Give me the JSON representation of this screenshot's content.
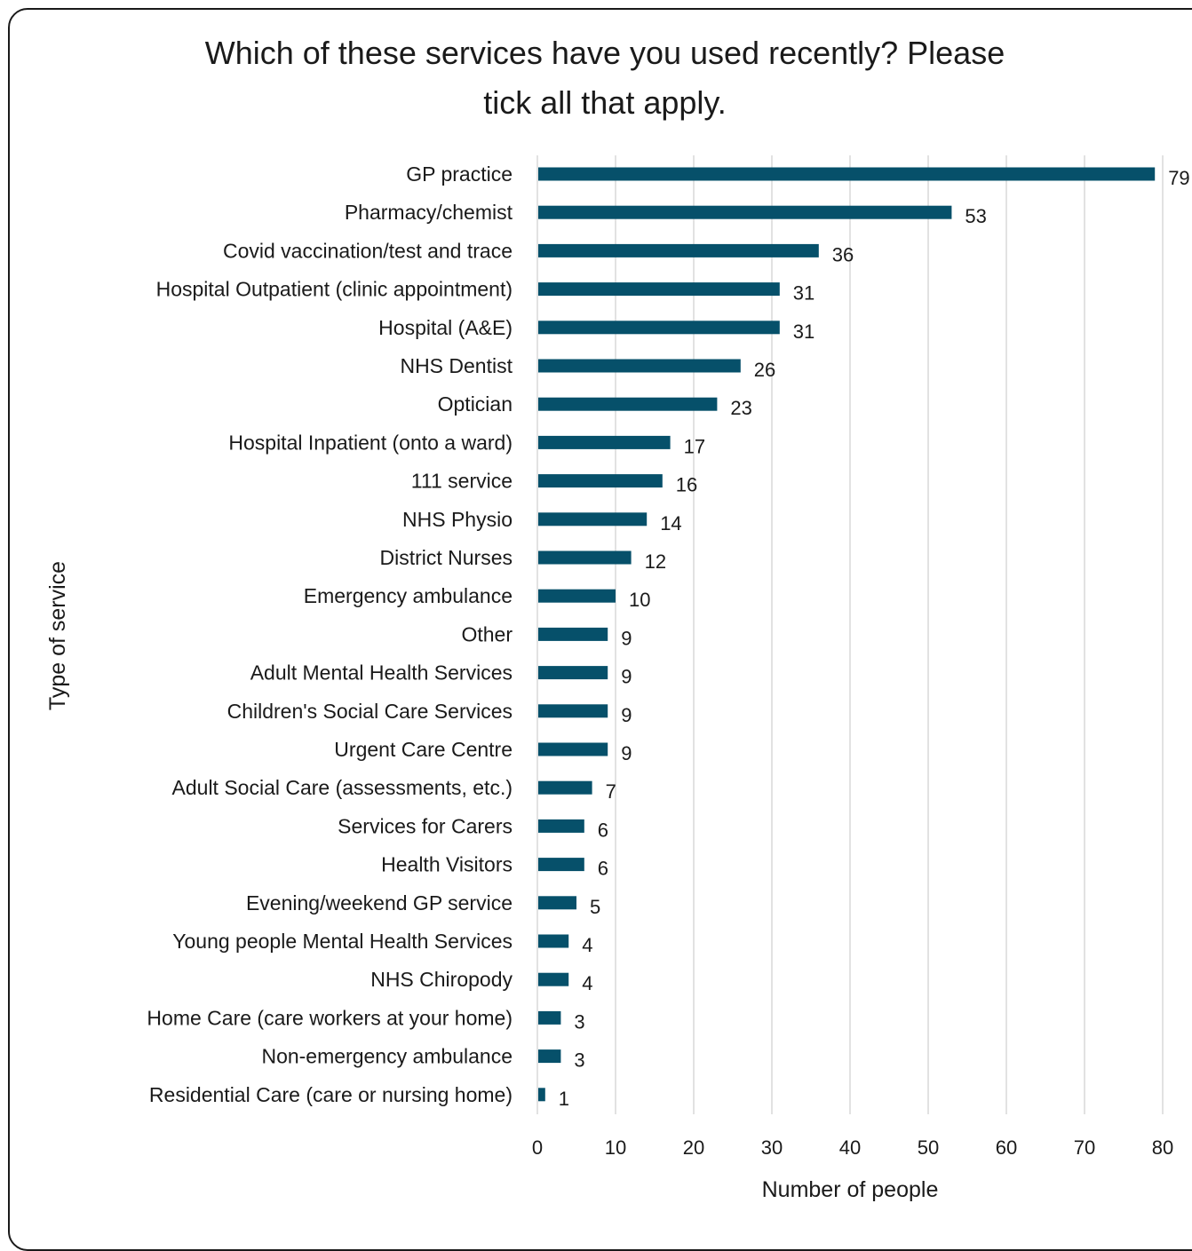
{
  "chart_data": {
    "type": "bar",
    "orientation": "horizontal",
    "title": "Which of these services have you used recently? Please tick all that apply.",
    "title_lines": [
      "Which of these services have you used recently? Please",
      "tick all that apply."
    ],
    "xlabel": "Number of people",
    "ylabel": "Type of service",
    "xlim": [
      0,
      80
    ],
    "xticks": [
      0,
      10,
      20,
      30,
      40,
      50,
      60,
      70,
      80
    ],
    "grid": "vertical",
    "bar_color": "#06506a",
    "categories": [
      "GP practice",
      "Pharmacy/chemist",
      "Covid vaccination/test and trace",
      "Hospital Outpatient (clinic appointment)",
      "Hospital (A&E)",
      "NHS Dentist",
      "Optician",
      "Hospital Inpatient (onto a ward)",
      "111 service",
      "NHS Physio",
      "District Nurses",
      "Emergency ambulance",
      "Other",
      "Adult Mental Health Services",
      "Children's Social Care Services",
      "Urgent Care Centre",
      "Adult Social Care (assessments, etc.)",
      "Services for Carers",
      "Health Visitors",
      "Evening/weekend GP service",
      "Young people Mental Health Services",
      "NHS Chiropody",
      "Home Care (care workers at your home)",
      "Non-emergency ambulance",
      "Residential Care (care or nursing home)"
    ],
    "values": [
      79,
      53,
      36,
      31,
      31,
      26,
      23,
      17,
      16,
      14,
      12,
      10,
      9,
      9,
      9,
      9,
      7,
      6,
      6,
      5,
      4,
      4,
      3,
      3,
      1
    ]
  }
}
